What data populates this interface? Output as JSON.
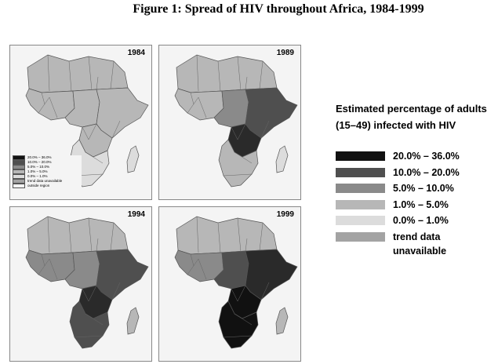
{
  "title": "Figure 1: Spread of HIV throughout Africa, 1984-1999",
  "legend": {
    "title": "Estimated percentage of adults (15–49) infected with HIV",
    "items": [
      {
        "label": "20.0% – 36.0%",
        "color": "#111111"
      },
      {
        "label": "10.0% – 20.0%",
        "color": "#4f4f4f"
      },
      {
        "label": "5.0% – 10.0%",
        "color": "#8a8a8a"
      },
      {
        "label": "1.0% – 5.0%",
        "color": "#b7b7b7"
      },
      {
        "label": "0.0% – 1.0%",
        "color": "#dcdcdc"
      },
      {
        "label": "trend data unavailable",
        "color": "#a3a3a3"
      }
    ]
  },
  "inset_legend": {
    "items": [
      {
        "label": "20.0% – 36.0%",
        "color": "#111111"
      },
      {
        "label": "10.0% – 20.0%",
        "color": "#4f4f4f"
      },
      {
        "label": "5.0% – 10.0%",
        "color": "#8a8a8a"
      },
      {
        "label": "1.0% – 5.0%",
        "color": "#b7b7b7"
      },
      {
        "label": "0.0% – 1.0%",
        "color": "#dcdcdc"
      },
      {
        "label": "trend data unavailable",
        "color": "#a3a3a3"
      },
      {
        "label": "outside region",
        "color": "#f4f4f4"
      }
    ]
  },
  "maps": [
    {
      "year": "1984",
      "regions": {
        "north": "#b7b7b7",
        "west": "#b7b7b7",
        "central": "#b7b7b7",
        "east": "#b7b7b7",
        "south_central": "#b7b7b7",
        "south": "#dcdcdc",
        "madagascar": "#dcdcdc"
      }
    },
    {
      "year": "1989",
      "regions": {
        "north": "#b7b7b7",
        "west": "#b7b7b7",
        "central": "#8a8a8a",
        "east": "#4f4f4f",
        "south_central": "#2a2a2a",
        "south": "#b7b7b7",
        "madagascar": "#dcdcdc"
      }
    },
    {
      "year": "1994",
      "regions": {
        "north": "#b7b7b7",
        "west": "#8a8a8a",
        "central": "#8a8a8a",
        "east": "#4f4f4f",
        "south_central": "#2a2a2a",
        "south": "#4f4f4f",
        "madagascar": "#b7b7b7"
      }
    },
    {
      "year": "1999",
      "regions": {
        "north": "#b7b7b7",
        "west": "#8a8a8a",
        "central": "#4f4f4f",
        "east": "#2a2a2a",
        "south_central": "#111111",
        "south": "#111111",
        "madagascar": "#b7b7b7"
      }
    }
  ]
}
